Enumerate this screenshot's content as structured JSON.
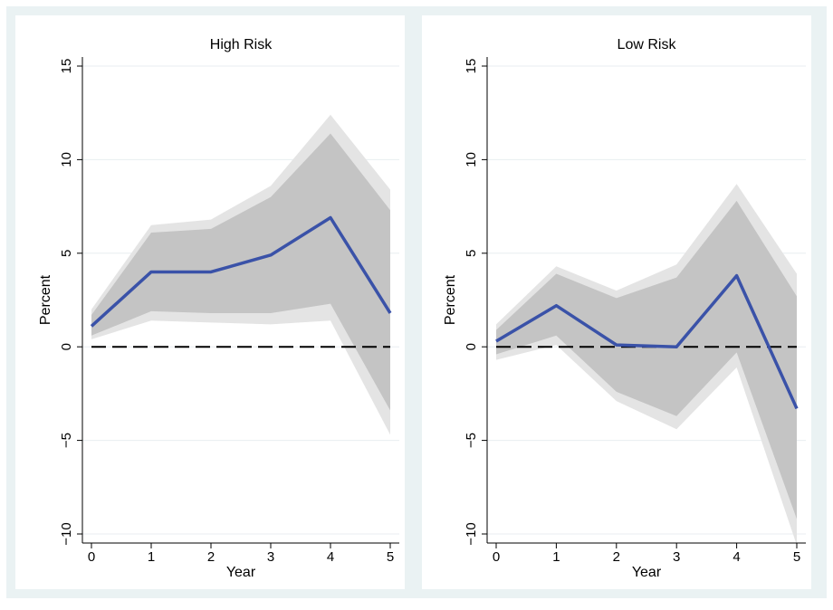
{
  "figure": {
    "background_color": "#eaf2f3",
    "plot_background_color": "#ffffff"
  },
  "chart_data": [
    {
      "type": "line",
      "title": "High Risk",
      "xlabel": "Year",
      "ylabel": "Percent",
      "xlim": [
        0,
        5
      ],
      "ylim": [
        -10,
        15
      ],
      "x_ticks": [
        0,
        1,
        2,
        3,
        4,
        5
      ],
      "y_ticks": [
        -10,
        -5,
        0,
        5,
        10,
        15
      ],
      "grid": true,
      "reference_line": {
        "y": 0,
        "style": "dashed",
        "color": "#000000"
      },
      "x": [
        0,
        1,
        2,
        3,
        4,
        5
      ],
      "series": [
        {
          "values": [
            1.1,
            4.0,
            4.0,
            4.9,
            6.9,
            1.8
          ],
          "color": "#3a52a8",
          "band_inner": {
            "lower": [
              0.6,
              1.9,
              1.8,
              1.8,
              2.3,
              -3.4
            ],
            "upper": [
              1.7,
              6.1,
              6.3,
              8.0,
              11.4,
              7.3
            ],
            "color": "#c4c4c4"
          },
          "band_outer": {
            "lower": [
              0.4,
              1.4,
              1.3,
              1.2,
              1.4,
              -4.7
            ],
            "upper": [
              2.0,
              6.5,
              6.8,
              8.6,
              12.4,
              8.4
            ],
            "color": "#e4e4e4"
          }
        }
      ]
    },
    {
      "type": "line",
      "title": "Low Risk",
      "xlabel": "Year",
      "ylabel": "Percent",
      "xlim": [
        0,
        5
      ],
      "ylim": [
        -10,
        15
      ],
      "x_ticks": [
        0,
        1,
        2,
        3,
        4,
        5
      ],
      "y_ticks": [
        -10,
        -5,
        0,
        5,
        10,
        15
      ],
      "grid": true,
      "reference_line": {
        "y": 0,
        "style": "dashed",
        "color": "#000000"
      },
      "x": [
        0,
        1,
        2,
        3,
        4,
        5
      ],
      "series": [
        {
          "values": [
            0.3,
            2.2,
            0.1,
            0.0,
            3.8,
            -3.3
          ],
          "color": "#3a52a8",
          "band_inner": {
            "lower": [
              -0.4,
              0.6,
              -2.4,
              -3.7,
              -0.3,
              -9.2
            ],
            "upper": [
              0.9,
              3.9,
              2.6,
              3.7,
              7.8,
              2.7
            ],
            "color": "#c4c4c4"
          },
          "band_outer": {
            "lower": [
              -0.7,
              0.1,
              -2.9,
              -4.4,
              -1.1,
              -10.6
            ],
            "upper": [
              1.2,
              4.3,
              3.0,
              4.4,
              8.7,
              3.9
            ],
            "color": "#e4e4e4"
          }
        }
      ]
    }
  ]
}
